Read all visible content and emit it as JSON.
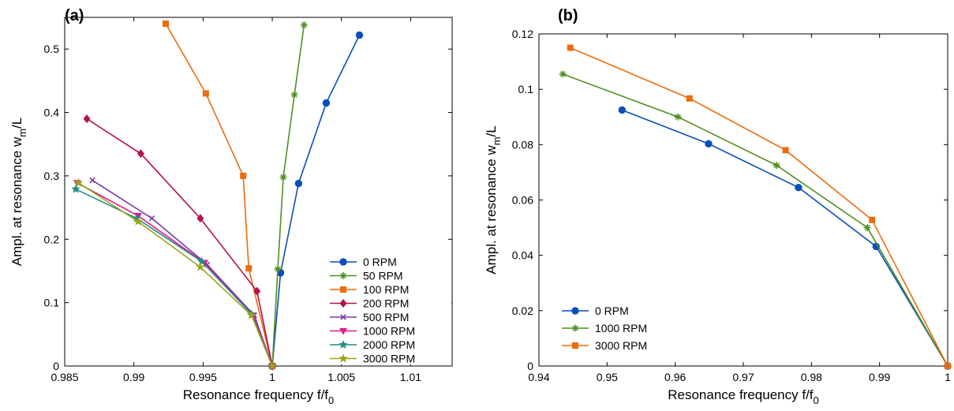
{
  "chart_data": [
    {
      "type": "line",
      "panel_label": "(a)",
      "xlabel": "Resonance frequency f/f",
      "xlabel_sub": "0",
      "ylabel": "Ampl. at resonance w",
      "ylabel_sub": "m",
      "ylabel_suffix": "/L",
      "xlim": [
        0.985,
        1.013
      ],
      "ylim": [
        0,
        0.55
      ],
      "xticks": [
        0.985,
        0.99,
        0.995,
        1,
        1.005,
        1.01
      ],
      "xtick_labels": [
        "0.985",
        "0.99",
        "0.995",
        "1",
        "1.005",
        "1.01"
      ],
      "yticks": [
        0,
        0.1,
        0.2,
        0.3,
        0.4,
        0.5
      ],
      "ytick_labels": [
        "0",
        "0.1",
        "0.2",
        "0.3",
        "0.4",
        "0.5"
      ],
      "legend_position": "bottom-right",
      "series": [
        {
          "name": "0 RPM",
          "color": "#0a4fbd",
          "marker": "circle",
          "x": [
            1.0,
            1.0006,
            1.0019,
            1.0039,
            1.0063
          ],
          "y": [
            0,
            0.147,
            0.288,
            0.415,
            0.522
          ]
        },
        {
          "name": "50 RPM",
          "color": "#4f8f1f",
          "marker": "asterisk",
          "x": [
            1.0,
            1.0004,
            1.0008,
            1.0016,
            1.0023
          ],
          "y": [
            0,
            0.153,
            0.298,
            0.428,
            0.538
          ]
        },
        {
          "name": "100 RPM",
          "color": "#ea6c0f",
          "marker": "square",
          "x": [
            1.0,
            0.9983,
            0.9979,
            0.9952,
            0.9923
          ],
          "y": [
            0,
            0.154,
            0.3,
            0.43,
            0.54
          ]
        },
        {
          "name": "200 RPM",
          "color": "#b5104a",
          "marker": "diamond",
          "x": [
            1.0,
            0.9989,
            0.9948,
            0.9905,
            0.9866
          ],
          "y": [
            0,
            0.118,
            0.233,
            0.335,
            0.39
          ]
        },
        {
          "name": "500 RPM",
          "color": "#7a3aa6",
          "marker": "x",
          "x": [
            1.0,
            0.9987,
            0.9953,
            0.9913,
            0.987
          ],
          "y": [
            0,
            0.08,
            0.16,
            0.233,
            0.293
          ]
        },
        {
          "name": "1000 RPM",
          "color": "#e2178f",
          "marker": "triangle-down",
          "x": [
            1.0,
            0.9986,
            0.9951,
            0.9903,
            0.9859
          ],
          "y": [
            0,
            0.08,
            0.163,
            0.237,
            0.289
          ]
        },
        {
          "name": "2000 RPM",
          "color": "#1f8f88",
          "marker": "star",
          "x": [
            1.0,
            0.9985,
            0.9949,
            0.9902,
            0.9858
          ],
          "y": [
            0,
            0.082,
            0.165,
            0.233,
            0.279
          ]
        },
        {
          "name": "3000 RPM",
          "color": "#9aa51a",
          "marker": "star",
          "x": [
            1.0,
            0.9985,
            0.9948,
            0.9903,
            0.986
          ],
          "y": [
            0,
            0.08,
            0.156,
            0.228,
            0.289
          ]
        }
      ]
    },
    {
      "type": "line",
      "panel_label": "(b)",
      "xlabel": "Resonance frequency f/f",
      "xlabel_sub": "0",
      "ylabel": "Ampl. at resonance w",
      "ylabel_sub": "m",
      "ylabel_suffix": "/L",
      "xlim": [
        0.94,
        1.0
      ],
      "ylim": [
        0,
        0.12
      ],
      "xticks": [
        0.94,
        0.95,
        0.96,
        0.97,
        0.98,
        0.99,
        1
      ],
      "xtick_labels": [
        "0.94",
        "0.95",
        "0.96",
        "0.97",
        "0.98",
        "0.99",
        "1"
      ],
      "yticks": [
        0,
        0.02,
        0.04,
        0.06,
        0.08,
        0.1,
        0.12
      ],
      "ytick_labels": [
        "0",
        "0.02",
        "0.04",
        "0.06",
        "0.08",
        "0.1",
        "0.12"
      ],
      "legend_position": "bottom-left",
      "series": [
        {
          "name": "0 RPM",
          "color": "#0a4fbd",
          "marker": "circle",
          "x": [
            0.9522,
            0.9649,
            0.9781,
            0.9895,
            1.0
          ],
          "y": [
            0.0925,
            0.0803,
            0.0645,
            0.0432,
            0
          ]
        },
        {
          "name": "1000 RPM",
          "color": "#4f8f1f",
          "marker": "asterisk",
          "x": [
            0.9435,
            0.9604,
            0.9749,
            0.9882,
            1.0
          ],
          "y": [
            0.1055,
            0.09,
            0.0725,
            0.05,
            0
          ]
        },
        {
          "name": "3000 RPM",
          "color": "#ea6c0f",
          "marker": "square",
          "x": [
            0.9446,
            0.9621,
            0.9762,
            0.9889,
            1.0
          ],
          "y": [
            0.115,
            0.0967,
            0.078,
            0.0528,
            0
          ]
        }
      ]
    }
  ]
}
